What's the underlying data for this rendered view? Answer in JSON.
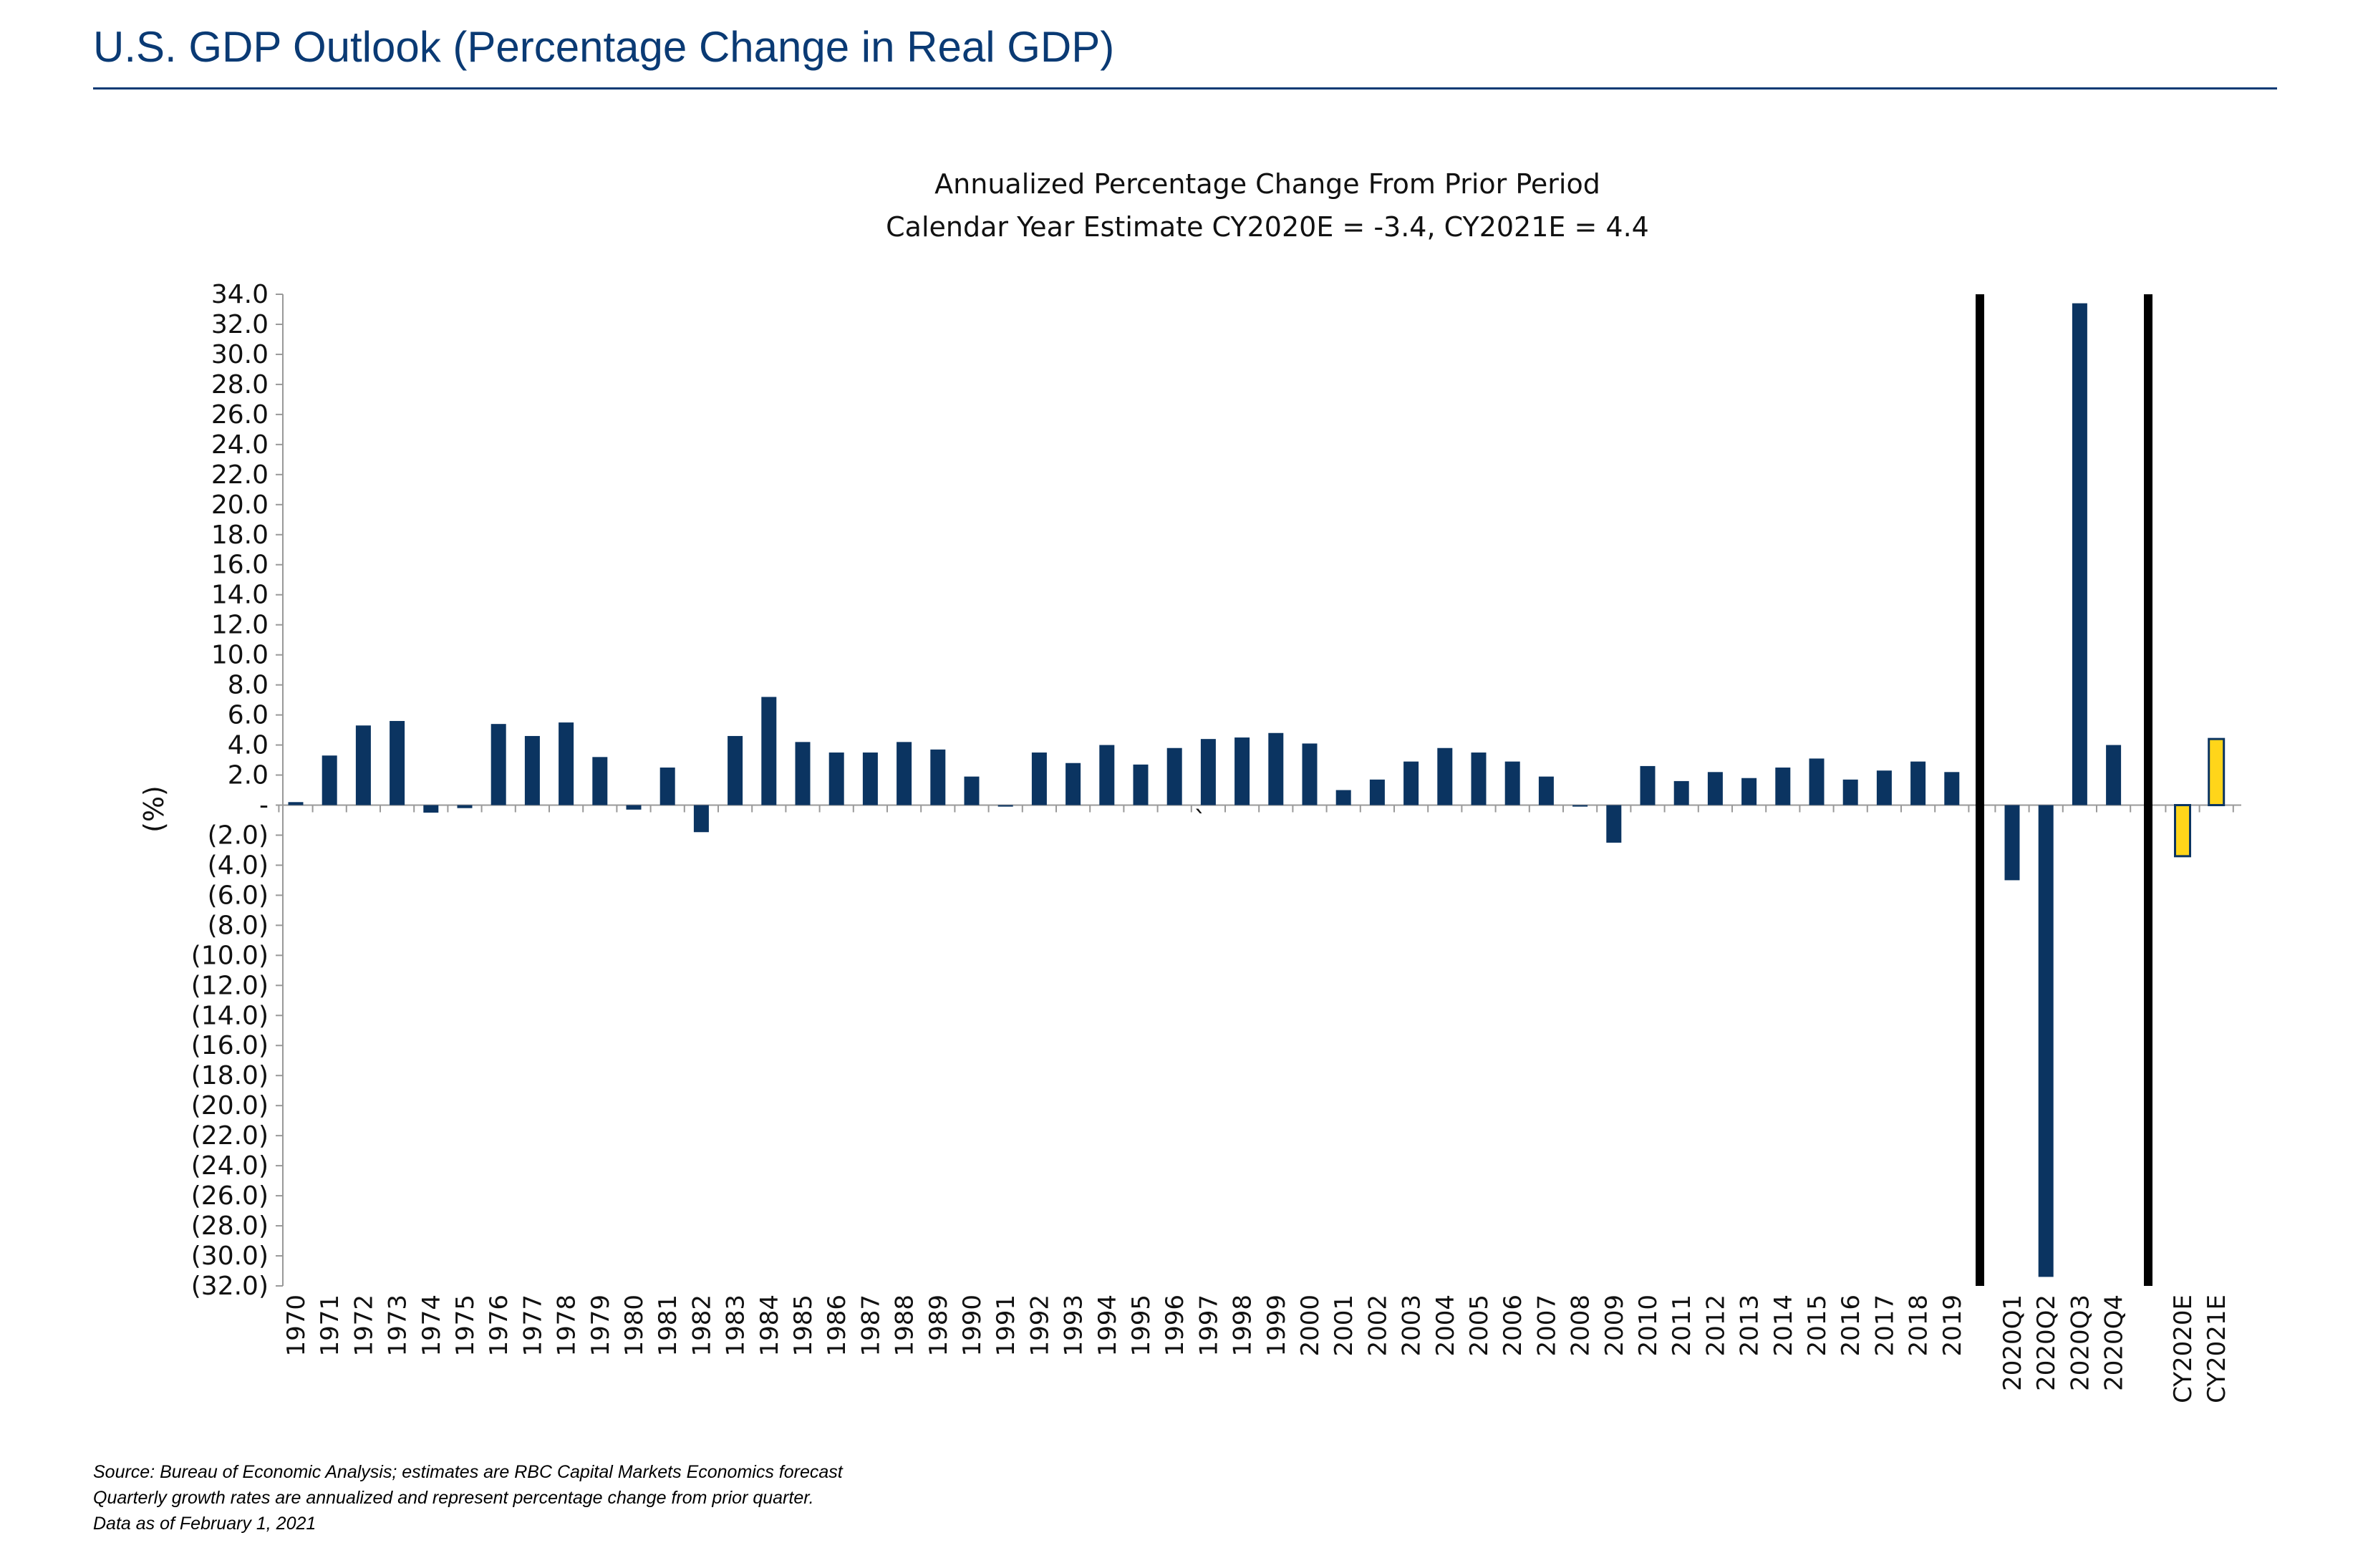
{
  "header": {
    "title": "U.S. GDP Outlook (Percentage Change in Real GDP)"
  },
  "footnotes": [
    "Source: Bureau of Economic Analysis; estimates are RBC Capital Markets Economics forecast",
    "Quarterly growth rates are annualized and represent percentage change from prior quarter.",
    "Data as of February 1, 2021"
  ],
  "colors": {
    "title": "#0a3a74",
    "bar_actual": "#0b3461",
    "bar_estimate": "#ffd51a",
    "separator": "#000000"
  },
  "chart_data": {
    "type": "bar",
    "title": "Annualized Percentage Change From Prior Period",
    "subtitle": "Calendar Year Estimate CY2020E = -3.4, CY2021E = 4.4",
    "ylabel": "(%)",
    "xlabel": "",
    "ylim": [
      -32,
      34
    ],
    "ytick_step": 2,
    "ytick_labels": [
      "34.0",
      "32.0",
      "30.0",
      "28.0",
      "26.0",
      "24.0",
      "22.0",
      "20.0",
      "18.0",
      "16.0",
      "14.0",
      "12.0",
      "10.0",
      "8.0",
      "6.0",
      "4.0",
      "2.0",
      "-",
      "(2.0)",
      "(4.0)",
      "(6.0)",
      "(8.0)",
      "(10.0)",
      "(12.0)",
      "(14.0)",
      "(16.0)",
      "(18.0)",
      "(20.0)",
      "(22.0)",
      "(24.0)",
      "(26.0)",
      "(28.0)",
      "(30.0)",
      "(32.0)"
    ],
    "grid": false,
    "legend": "none",
    "stray_mark": "`",
    "categories": [
      "1970",
      "1971",
      "1972",
      "1973",
      "1974",
      "1975",
      "1976",
      "1977",
      "1978",
      "1979",
      "1980",
      "1981",
      "1982",
      "1983",
      "1984",
      "1985",
      "1986",
      "1987",
      "1988",
      "1989",
      "1990",
      "1991",
      "1992",
      "1993",
      "1994",
      "1995",
      "1996",
      "1997",
      "1998",
      "1999",
      "2000",
      "2001",
      "2002",
      "2003",
      "2004",
      "2005",
      "2006",
      "2007",
      "2008",
      "2009",
      "2010",
      "2011",
      "2012",
      "2013",
      "2014",
      "2015",
      "2016",
      "2017",
      "2018",
      "2019",
      "2020Q1",
      "2020Q2",
      "2020Q3",
      "2020Q4",
      "CY2020E",
      "CY2021E"
    ],
    "values": [
      0.2,
      3.3,
      5.3,
      5.6,
      -0.5,
      -0.2,
      5.4,
      4.6,
      5.5,
      3.2,
      -0.3,
      2.5,
      -1.8,
      4.6,
      7.2,
      4.2,
      3.5,
      3.5,
      4.2,
      3.7,
      1.9,
      -0.1,
      3.5,
      2.8,
      4.0,
      2.7,
      3.8,
      4.4,
      4.5,
      4.8,
      4.1,
      1.0,
      1.7,
      2.9,
      3.8,
      3.5,
      2.9,
      1.9,
      -0.1,
      -2.5,
      2.6,
      1.6,
      2.2,
      1.8,
      2.5,
      3.1,
      1.7,
      2.3,
      2.9,
      2.2,
      -5.0,
      -31.4,
      33.4,
      4.0,
      -3.4,
      4.4
    ],
    "estimate_categories": [
      "CY2020E",
      "CY2021E"
    ]
  }
}
